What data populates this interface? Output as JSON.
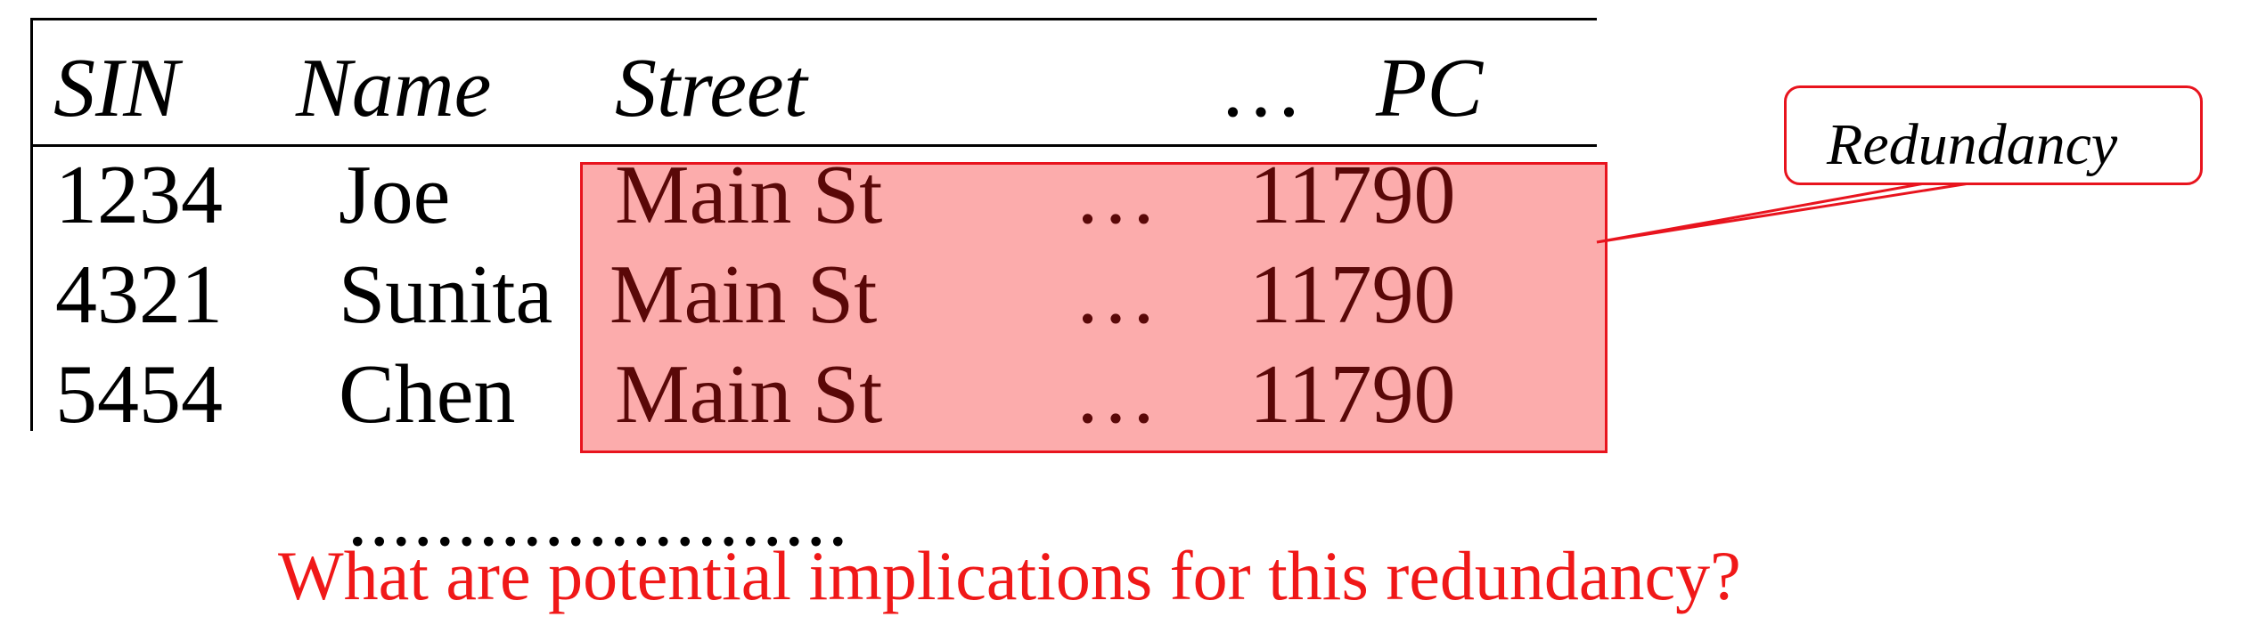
{
  "table": {
    "headers": {
      "sin": "SIN",
      "name": "Name",
      "street": "Street",
      "ellipsis": "…",
      "pc": "PC"
    },
    "rows": [
      {
        "sin": "1234",
        "name": "Joe",
        "street": "Main St",
        "ellipsis": "…",
        "pc": "11790"
      },
      {
        "sin": "4321",
        "name": "Sunita",
        "street": "Main St",
        "ellipsis": "…",
        "pc": "11790"
      },
      {
        "sin": "5454",
        "name": "Chen",
        "street": "Main St",
        "ellipsis": "…",
        "pc": "11790"
      }
    ],
    "continuation": "......................."
  },
  "callout": {
    "label": "Redundancy"
  },
  "question": "What are potential implications for this redundancy?",
  "colors": {
    "highlight_fill": "#fa5a5a",
    "highlight_border": "#e8141e",
    "question_text": "#f01818"
  }
}
